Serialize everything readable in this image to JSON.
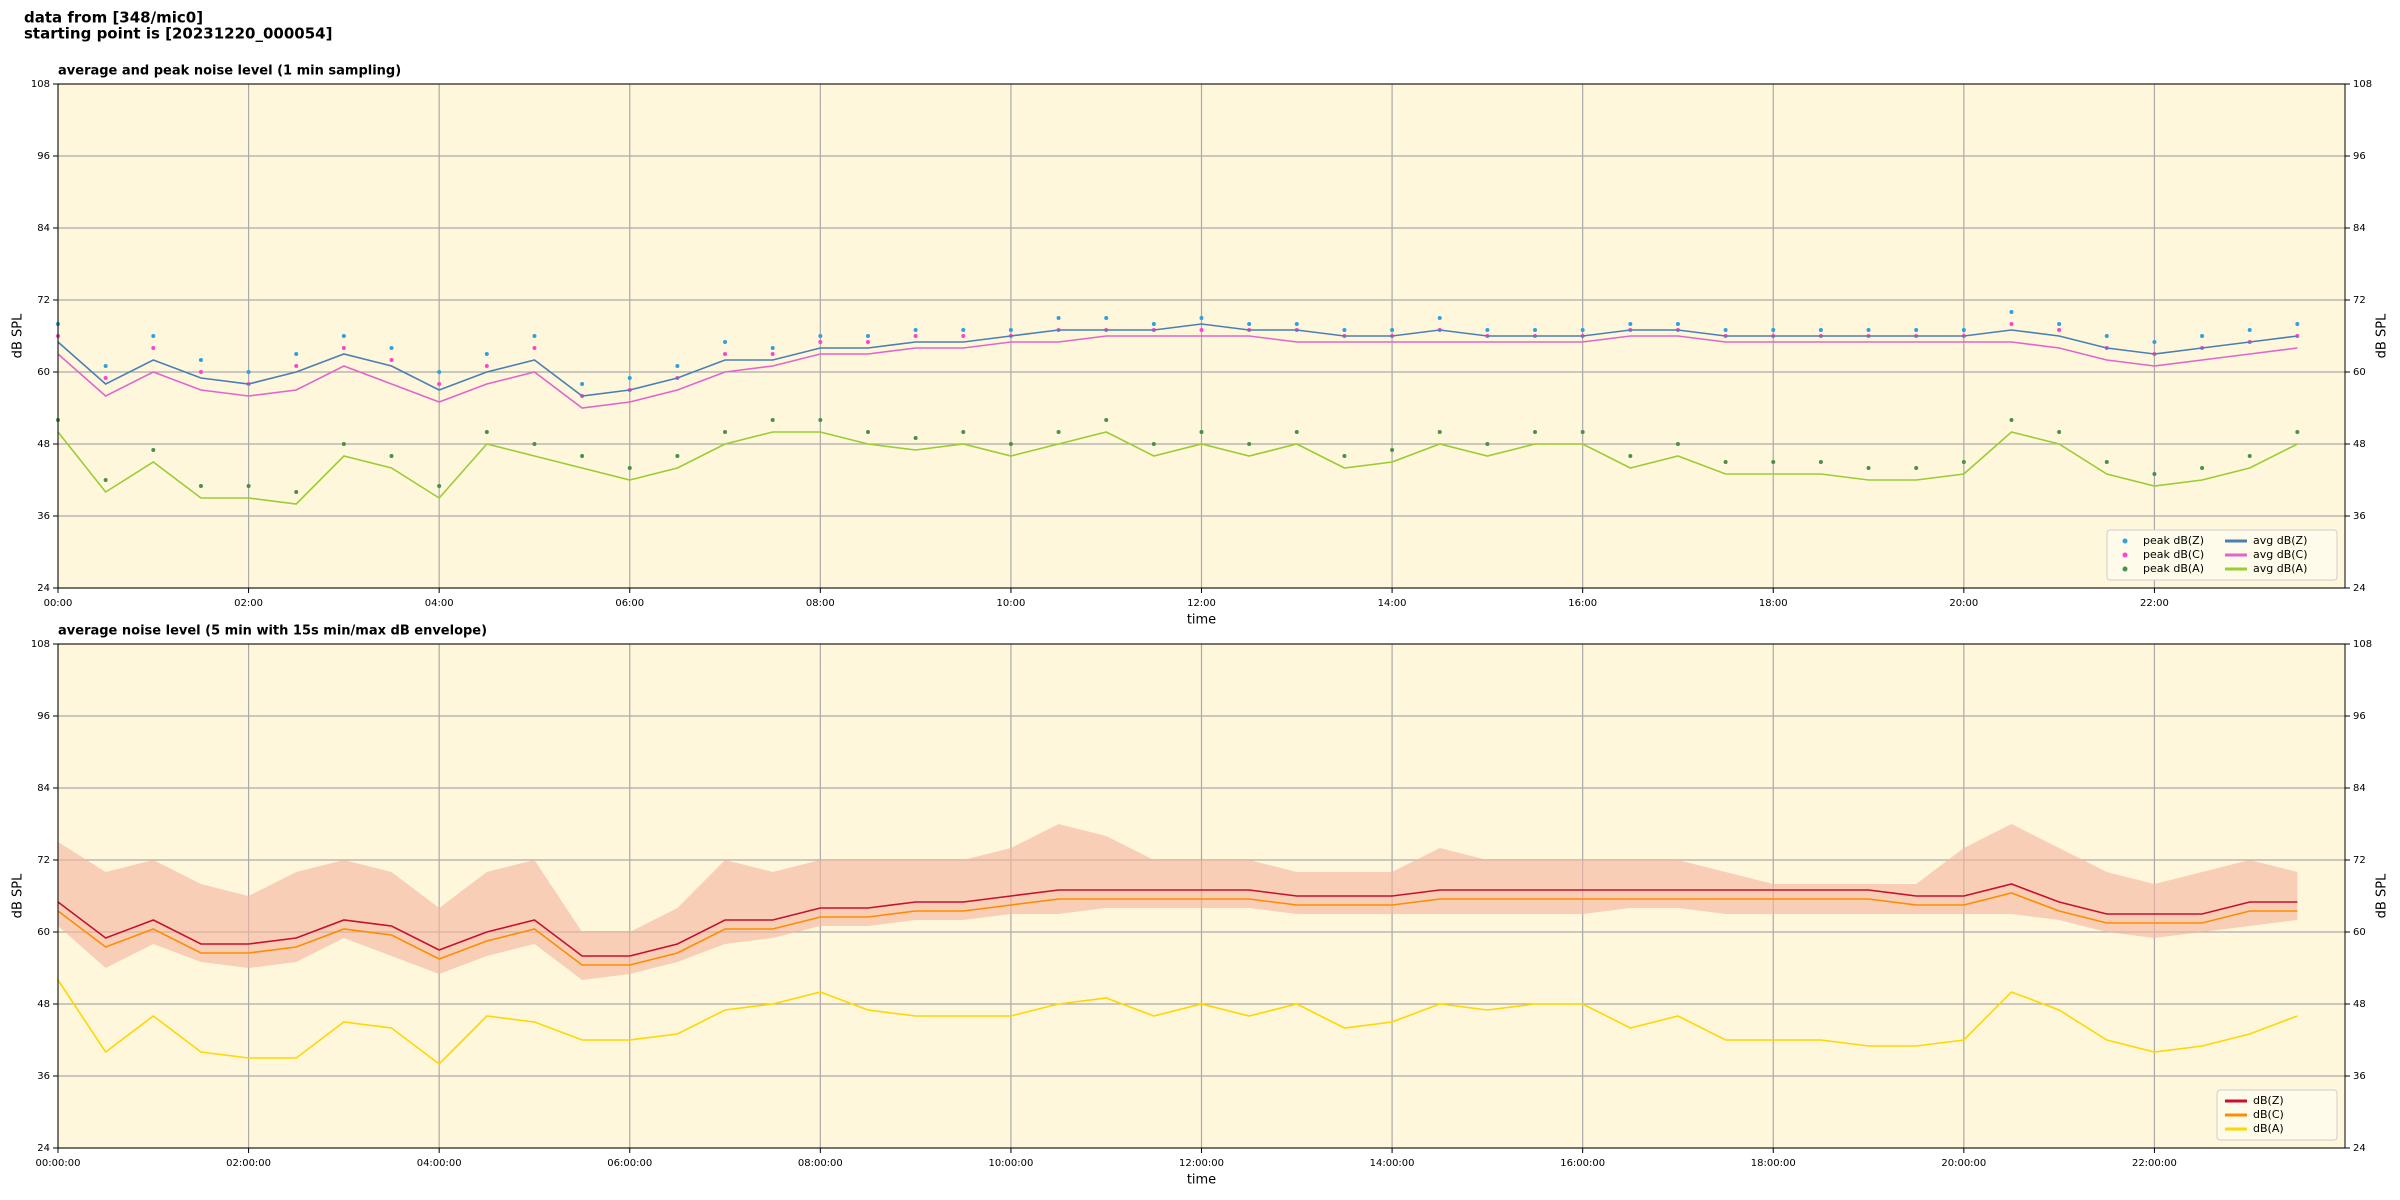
{
  "header": [
    "data from [348/mic0]",
    "starting point is [20231220_000054]"
  ],
  "chart_data": [
    {
      "type": "line",
      "title": "average and peak noise level (1 min sampling)",
      "xlabel": "time",
      "ylabel": "dB SPL",
      "x": [
        0,
        0.5,
        1,
        1.5,
        2,
        2.5,
        3,
        3.5,
        4,
        4.5,
        5,
        5.5,
        6,
        6.5,
        7,
        7.5,
        8,
        8.5,
        9,
        9.5,
        10,
        10.5,
        11,
        11.5,
        12,
        12.5,
        13,
        13.5,
        14,
        14.5,
        15,
        15.5,
        16,
        16.5,
        17,
        17.5,
        18,
        18.5,
        19,
        19.5,
        20,
        20.5,
        21,
        21.5,
        22,
        22.5,
        23,
        23.5
      ],
      "xlim": [
        0,
        24
      ],
      "xticks": [
        {
          "value": 0,
          "label": "00:00"
        },
        {
          "value": 2,
          "label": "02:00"
        },
        {
          "value": 4,
          "label": "04:00"
        },
        {
          "value": 6,
          "label": "06:00"
        },
        {
          "value": 8,
          "label": "08:00"
        },
        {
          "value": 10,
          "label": "10:00"
        },
        {
          "value": 12,
          "label": "12:00"
        },
        {
          "value": 14,
          "label": "14:00"
        },
        {
          "value": 16,
          "label": "16:00"
        },
        {
          "value": 18,
          "label": "18:00"
        },
        {
          "value": 20,
          "label": "20:00"
        },
        {
          "value": 22,
          "label": "22:00"
        }
      ],
      "ylim": [
        24,
        108
      ],
      "yticks": [
        24,
        36,
        48,
        60,
        72,
        84,
        96,
        108
      ],
      "grid": true,
      "legend": "lower right",
      "series": [
        {
          "name": "peak dB(Z)",
          "type": "scatter",
          "color": "#2fa0e0",
          "values": [
            68,
            61,
            66,
            62,
            60,
            63,
            66,
            64,
            60,
            63,
            66,
            58,
            59,
            61,
            65,
            64,
            66,
            66,
            67,
            67,
            67,
            69,
            69,
            68,
            69,
            68,
            68,
            67,
            67,
            69,
            67,
            67,
            67,
            68,
            68,
            67,
            67,
            67,
            67,
            67,
            67,
            70,
            68,
            66,
            65,
            66,
            67,
            68
          ]
        },
        {
          "name": "peak dB(C)",
          "type": "scatter",
          "color": "#ff44cc",
          "values": [
            66,
            59,
            64,
            60,
            58,
            61,
            64,
            62,
            58,
            61,
            64,
            56,
            57,
            59,
            63,
            63,
            65,
            65,
            66,
            66,
            66,
            67,
            67,
            67,
            67,
            67,
            67,
            66,
            66,
            67,
            66,
            66,
            66,
            67,
            67,
            66,
            66,
            66,
            66,
            66,
            66,
            68,
            67,
            64,
            63,
            64,
            65,
            66
          ]
        },
        {
          "name": "peak dB(A)",
          "type": "scatter",
          "color": "#4a8f4a",
          "values": [
            52,
            42,
            47,
            41,
            41,
            40,
            48,
            46,
            41,
            50,
            48,
            46,
            44,
            46,
            50,
            52,
            52,
            50,
            49,
            50,
            48,
            50,
            52,
            48,
            50,
            48,
            50,
            46,
            47,
            50,
            48,
            50,
            50,
            46,
            48,
            45,
            45,
            45,
            44,
            44,
            45,
            52,
            50,
            45,
            43,
            44,
            46,
            50
          ]
        },
        {
          "name": "avg dB(Z)",
          "type": "line",
          "color": "#4a7fb5",
          "values": [
            65,
            58,
            62,
            59,
            58,
            60,
            63,
            61,
            57,
            60,
            62,
            56,
            57,
            59,
            62,
            62,
            64,
            64,
            65,
            65,
            66,
            67,
            67,
            67,
            68,
            67,
            67,
            66,
            66,
            67,
            66,
            66,
            66,
            67,
            67,
            66,
            66,
            66,
            66,
            66,
            66,
            67,
            66,
            64,
            63,
            64,
            65,
            66
          ]
        },
        {
          "name": "avg dB(C)",
          "type": "line",
          "color": "#e066cc",
          "values": [
            63,
            56,
            60,
            57,
            56,
            57,
            61,
            58,
            55,
            58,
            60,
            54,
            55,
            57,
            60,
            61,
            63,
            63,
            64,
            64,
            65,
            65,
            66,
            66,
            66,
            66,
            65,
            65,
            65,
            65,
            65,
            65,
            65,
            66,
            66,
            65,
            65,
            65,
            65,
            65,
            65,
            65,
            64,
            62,
            61,
            62,
            63,
            64
          ]
        },
        {
          "name": "avg dB(A)",
          "type": "line",
          "color": "#9acd32",
          "values": [
            50,
            40,
            45,
            39,
            39,
            38,
            46,
            44,
            39,
            48,
            46,
            44,
            42,
            44,
            48,
            50,
            50,
            48,
            47,
            48,
            46,
            48,
            50,
            46,
            48,
            46,
            48,
            44,
            45,
            48,
            46,
            48,
            48,
            44,
            46,
            43,
            43,
            43,
            42,
            42,
            43,
            50,
            48,
            43,
            41,
            42,
            44,
            48
          ]
        }
      ]
    },
    {
      "type": "line",
      "title": "average noise level (5 min with 15s min/max dB envelope)",
      "xlabel": "time",
      "ylabel": "dB SPL",
      "x": [
        0,
        0.5,
        1,
        1.5,
        2,
        2.5,
        3,
        3.5,
        4,
        4.5,
        5,
        5.5,
        6,
        6.5,
        7,
        7.5,
        8,
        8.5,
        9,
        9.5,
        10,
        10.5,
        11,
        11.5,
        12,
        12.5,
        13,
        13.5,
        14,
        14.5,
        15,
        15.5,
        16,
        16.5,
        17,
        17.5,
        18,
        18.5,
        19,
        19.5,
        20,
        20.5,
        21,
        21.5,
        22,
        22.5,
        23,
        23.5
      ],
      "xlim": [
        0,
        24
      ],
      "xticks": [
        {
          "value": 0,
          "label": "00:00:00"
        },
        {
          "value": 2,
          "label": "02:00:00"
        },
        {
          "value": 4,
          "label": "04:00:00"
        },
        {
          "value": 6,
          "label": "06:00:00"
        },
        {
          "value": 8,
          "label": "08:00:00"
        },
        {
          "value": 10,
          "label": "10:00:00"
        },
        {
          "value": 12,
          "label": "12:00:00"
        },
        {
          "value": 14,
          "label": "14:00:00"
        },
        {
          "value": 16,
          "label": "16:00:00"
        },
        {
          "value": 18,
          "label": "18:00:00"
        },
        {
          "value": 20,
          "label": "20:00:00"
        },
        {
          "value": 22,
          "label": "22:00:00"
        }
      ],
      "ylim": [
        24,
        108
      ],
      "yticks": [
        24,
        36,
        48,
        60,
        72,
        84,
        96,
        108
      ],
      "grid": true,
      "legend": "lower right",
      "envelope": {
        "color": "#f4b49c",
        "high": [
          75,
          70,
          72,
          68,
          66,
          70,
          72,
          70,
          64,
          70,
          72,
          60,
          60,
          64,
          72,
          70,
          72,
          72,
          72,
          72,
          74,
          78,
          76,
          72,
          72,
          72,
          70,
          70,
          70,
          74,
          72,
          72,
          72,
          72,
          72,
          70,
          68,
          68,
          68,
          68,
          74,
          78,
          74,
          70,
          68,
          70,
          72,
          70
        ],
        "low": [
          61,
          54,
          58,
          55,
          54,
          55,
          59,
          56,
          53,
          56,
          58,
          52,
          53,
          55,
          58,
          59,
          61,
          61,
          62,
          62,
          63,
          63,
          64,
          64,
          64,
          64,
          63,
          63,
          63,
          63,
          63,
          63,
          63,
          64,
          64,
          63,
          63,
          63,
          63,
          63,
          63,
          63,
          62,
          60,
          59,
          60,
          61,
          62
        ]
      },
      "series": [
        {
          "name": "dB(Z)",
          "type": "line",
          "color": "#c8102e",
          "values": [
            65,
            59,
            62,
            58,
            58,
            59,
            62,
            61,
            57,
            60,
            62,
            56,
            56,
            58,
            62,
            62,
            64,
            64,
            65,
            65,
            66,
            67,
            67,
            67,
            67,
            67,
            66,
            66,
            66,
            67,
            67,
            67,
            67,
            67,
            67,
            67,
            67,
            67,
            67,
            66,
            66,
            68,
            65,
            63,
            63,
            63,
            65,
            65
          ]
        },
        {
          "name": "dB(C)",
          "type": "line",
          "color": "#ff8c00",
          "values": [
            63.5,
            57.5,
            60.5,
            56.5,
            56.5,
            57.5,
            60.5,
            59.5,
            55.5,
            58.5,
            60.5,
            54.5,
            54.5,
            56.5,
            60.5,
            60.5,
            62.5,
            62.5,
            63.5,
            63.5,
            64.5,
            65.5,
            65.5,
            65.5,
            65.5,
            65.5,
            64.5,
            64.5,
            64.5,
            65.5,
            65.5,
            65.5,
            65.5,
            65.5,
            65.5,
            65.5,
            65.5,
            65.5,
            65.5,
            64.5,
            64.5,
            66.5,
            63.5,
            61.5,
            61.5,
            61.5,
            63.5,
            63.5
          ]
        },
        {
          "name": "dB(A)",
          "type": "line",
          "color": "#ffd700",
          "values": [
            52,
            40,
            46,
            40,
            39,
            39,
            45,
            44,
            38,
            46,
            45,
            42,
            42,
            43,
            47,
            48,
            50,
            47,
            46,
            46,
            46,
            48,
            49,
            46,
            48,
            46,
            48,
            44,
            45,
            48,
            47,
            48,
            48,
            44,
            46,
            42,
            42,
            42,
            41,
            41,
            42,
            50,
            47,
            42,
            40,
            41,
            43,
            46
          ]
        }
      ]
    }
  ]
}
